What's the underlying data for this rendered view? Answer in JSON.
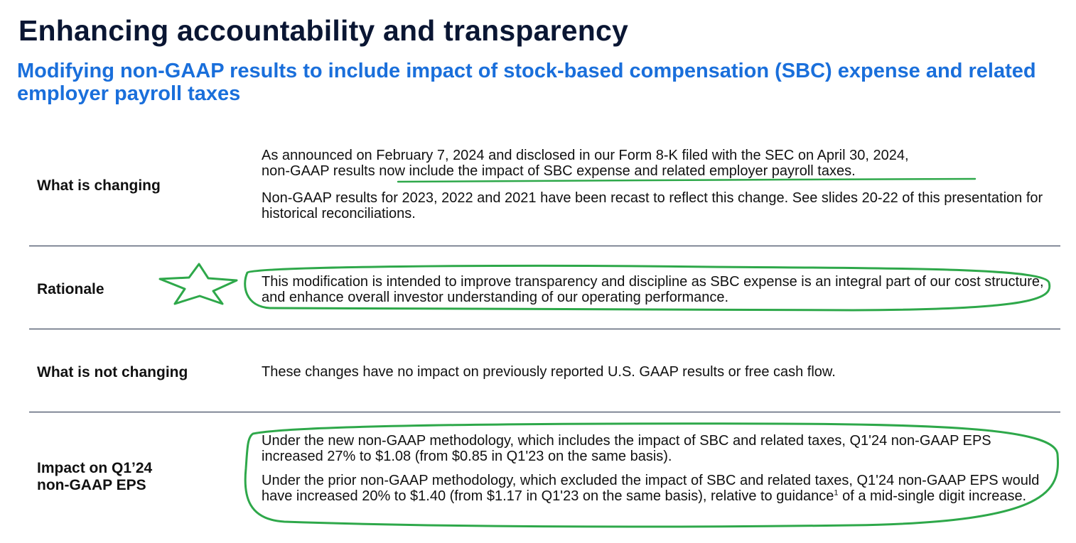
{
  "page": {
    "title": "Enhancing accountability and transparency",
    "subtitle": "Modifying non-GAAP results to include impact of stock-based compensation (SBC) expense and related employer payroll taxes"
  },
  "rows": [
    {
      "label": "What is changing",
      "para1_line1": "As announced on February 7, 2024 and disclosed in our Form 8-K filed with the SEC on April 30, 2024,",
      "para1_line2_start": "non-GAAP results ",
      "para1_line2_highlight": "now include the impact of SBC expense and related employer payroll taxes.",
      "para2": "Non-GAAP results for 2023, 2022 and 2021 have been recast to reflect this change. See slides 20-22 of this presentation for historical reconciliations."
    },
    {
      "label": "Rationale",
      "para1": "This modification is intended to improve transparency and discipline as SBC expense is an integral part of our cost structure, and enhance overall investor understanding of our operating performance."
    },
    {
      "label": "What is not changing",
      "para1": "These changes have no impact on previously reported U.S. GAAP results or free cash flow."
    },
    {
      "label_line1": "Impact on Q1’24",
      "label_line2": "non-GAAP EPS",
      "para1": "Under the new non-GAAP methodology, which includes the impact of SBC and related taxes, Q1'24 non-GAAP EPS increased 27% to $1.08 (from $0.85 in Q1'23 on the same basis).",
      "para2_start": "Under the prior non-GAAP methodology, which excluded the impact of SBC and related taxes, Q1'24 non-GAAP EPS would have increased 20% to $1.40 (from $1.17 in Q1'23 on the same basis), relative to guidance",
      "para2_footnote": "1",
      "para2_end": " of a mid-single digit increase."
    }
  ],
  "annotations": {
    "color": "#2ea84a",
    "star_icon": "star-outline-icon"
  }
}
